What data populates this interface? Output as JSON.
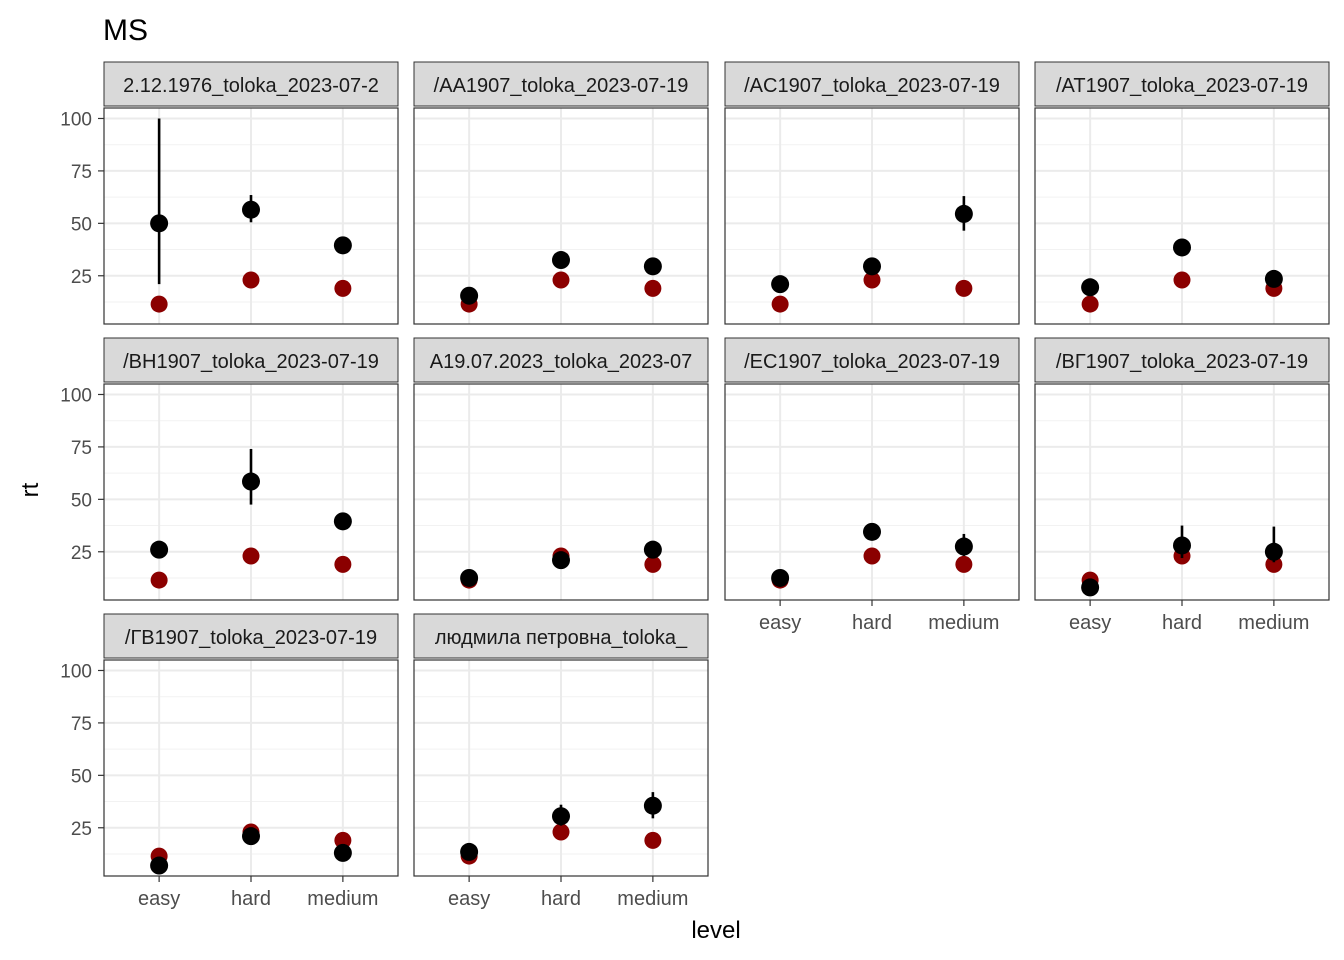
{
  "chart_data": {
    "type": "scatter",
    "title": "MS",
    "xlabel": "level",
    "ylabel": "rt",
    "categories": [
      "easy",
      "hard",
      "medium"
    ],
    "y_ticks": [
      25,
      50,
      75,
      100
    ],
    "ylim": [
      2,
      105
    ],
    "grid": true,
    "colors": {
      "red_series": "#8B0000",
      "black_series": "#000000",
      "strip_fill": "#D9D9D9"
    },
    "panels": [
      {
        "strip": "2.12.1976_toloka_2023-07-2",
        "red": [
          11.5,
          23,
          19
        ],
        "black": [
          50,
          56.5,
          39.5
        ],
        "black_err": [
          [
            21,
            100
          ],
          [
            50.5,
            63.5
          ],
          [
            38,
            41
          ]
        ]
      },
      {
        "strip": "/AA1907_toloka_2023-07-19",
        "red": [
          11.5,
          23,
          19
        ],
        "black": [
          15.5,
          32.5,
          29.5
        ],
        "black_err": [
          [
            14,
            17
          ],
          [
            31,
            34
          ],
          [
            28,
            31
          ]
        ]
      },
      {
        "strip": "/AC1907_toloka_2023-07-19",
        "red": [
          11.5,
          23,
          19
        ],
        "black": [
          21,
          29.5,
          54.5
        ],
        "black_err": [
          [
            20,
            22
          ],
          [
            28,
            31
          ],
          [
            46.5,
            63
          ]
        ]
      },
      {
        "strip": "/AT1907_toloka_2023-07-19",
        "red": [
          11.5,
          23,
          19
        ],
        "black": [
          19.5,
          38.5,
          23.5
        ],
        "black_err": [
          [
            18.5,
            20.5
          ],
          [
            37,
            40
          ],
          [
            22,
            25
          ]
        ]
      },
      {
        "strip": "/BH1907_toloka_2023-07-19",
        "red": [
          11.5,
          23,
          19
        ],
        "black": [
          26,
          58.5,
          39.5
        ],
        "black_err": [
          [
            25,
            27
          ],
          [
            47.5,
            74
          ],
          [
            38,
            41
          ]
        ]
      },
      {
        "strip": "A19.07.2023_toloka_2023-07",
        "red": [
          11.5,
          23,
          19
        ],
        "black": [
          12.5,
          21,
          26
        ],
        "black_err": [
          [
            11.5,
            13.5
          ],
          [
            20,
            22
          ],
          [
            25,
            27
          ]
        ]
      },
      {
        "strip": "/EC1907_toloka_2023-07-19",
        "red": [
          11.5,
          23,
          19
        ],
        "black": [
          12.5,
          34.5,
          27.5
        ],
        "black_err": [
          [
            11.5,
            13.5
          ],
          [
            33,
            36
          ],
          [
            23,
            33.5
          ]
        ]
      },
      {
        "strip": "/BГ1907_toloka_2023-07-19",
        "red": [
          11.5,
          23,
          19
        ],
        "black": [
          8,
          28,
          25
        ],
        "black_err": [
          [
            7,
            9
          ],
          [
            22,
            37.5
          ],
          [
            20,
            37
          ]
        ]
      },
      {
        "strip": "/ГВ1907_toloka_2023-07-19",
        "red": [
          11.5,
          23,
          19
        ],
        "black": [
          7,
          21,
          13
        ],
        "black_err": [
          [
            6,
            8
          ],
          [
            20,
            22
          ],
          [
            12,
            14
          ]
        ]
      },
      {
        "strip": "людмила петровна_toloka_",
        "red": [
          11.5,
          23,
          19
        ],
        "black": [
          13.5,
          30.5,
          35.5
        ],
        "black_err": [
          [
            12.5,
            14.5
          ],
          [
            26,
            36
          ],
          [
            29.5,
            42
          ]
        ]
      }
    ]
  }
}
